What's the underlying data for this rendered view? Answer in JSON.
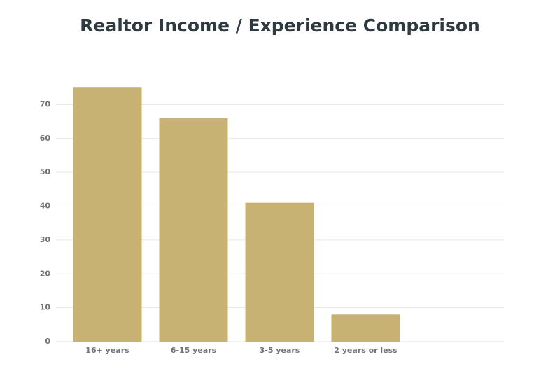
{
  "chart_data": {
    "type": "bar",
    "title": "Realtor Income / Experience Comparison",
    "categories": [
      "16+ years",
      "6-15 years",
      "3-5 years",
      "2 years or less"
    ],
    "values": [
      75,
      66,
      41,
      8
    ],
    "color": "#c8b273",
    "ylim": [
      0,
      80
    ],
    "yticks": [
      0,
      10,
      20,
      30,
      40,
      50,
      60,
      70
    ],
    "grid": true
  }
}
